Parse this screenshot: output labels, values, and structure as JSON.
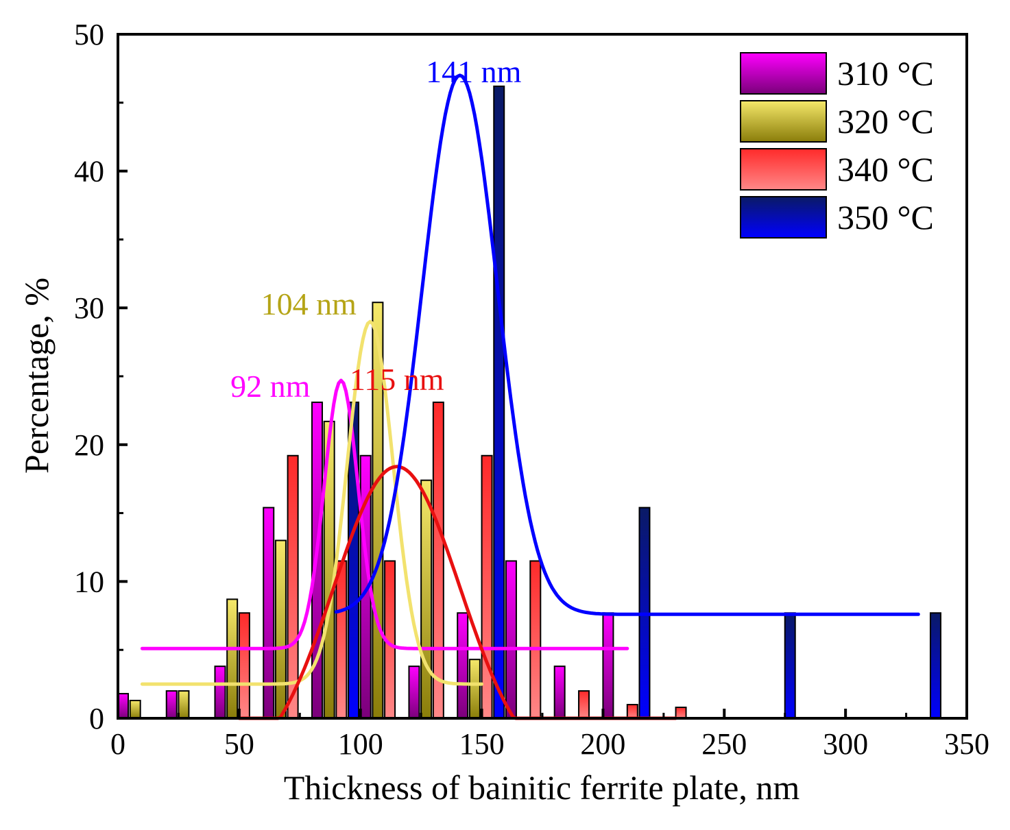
{
  "chart_data": {
    "type": "bar",
    "xlabel": "Thickness of bainitic ferrite plate, nm",
    "ylabel": "Percentage, %",
    "xlim": [
      0,
      350
    ],
    "ylim": [
      0,
      50
    ],
    "xticks": [
      "0",
      "50",
      "100",
      "150",
      "200",
      "250",
      "300",
      "350"
    ],
    "yticks": [
      "0",
      "10",
      "20",
      "30",
      "40",
      "50"
    ],
    "legend_position": "top-right",
    "series": [
      {
        "name": "310 °C",
        "color_top": "#ff00ff",
        "color_bottom": "#7a007a",
        "line_color": "#ff00ff",
        "peak_label": "92 nm",
        "peak_label_x": 92,
        "peak_label_y": 23.5,
        "fit": {
          "y0": 5.1,
          "A": 19.6,
          "xc": 92,
          "w": 14,
          "from": 10,
          "to": 210
        },
        "bars": [
          {
            "x": 0,
            "y": 1.8
          },
          {
            "x": 20,
            "y": 2.0
          },
          {
            "x": 40,
            "y": 3.8
          },
          {
            "x": 60,
            "y": 15.4
          },
          {
            "x": 80,
            "y": 23.1
          },
          {
            "x": 100,
            "y": 19.2
          },
          {
            "x": 120,
            "y": 3.8
          },
          {
            "x": 140,
            "y": 7.7
          },
          {
            "x": 160,
            "y": 11.5
          },
          {
            "x": 180,
            "y": 3.8
          },
          {
            "x": 200,
            "y": 7.7
          }
        ]
      },
      {
        "name": "320 °C",
        "color_top": "#f5e86a",
        "color_bottom": "#8a7d0a",
        "line_color": "#f2e26e",
        "peak_label": "104 nm",
        "peak_label_x": 104,
        "peak_label_y": 29.5,
        "fit": {
          "y0": 2.5,
          "A": 26.5,
          "xc": 104,
          "w": 19,
          "from": 10,
          "to": 150
        },
        "bars": [
          {
            "x": 5,
            "y": 1.3
          },
          {
            "x": 25,
            "y": 2.0
          },
          {
            "x": 45,
            "y": 8.7
          },
          {
            "x": 65,
            "y": 13.0
          },
          {
            "x": 85,
            "y": 21.7
          },
          {
            "x": 105,
            "y": 30.4
          },
          {
            "x": 125,
            "y": 17.4
          },
          {
            "x": 145,
            "y": 4.3
          }
        ]
      },
      {
        "name": "340 °C",
        "color_top": "#ff2a2a",
        "color_bottom": "#ff8888",
        "line_color": "#e81010",
        "peak_label": "115 nm",
        "peak_label_x": 115,
        "peak_label_y": 24.0,
        "fit": {
          "y0": -4.0,
          "A": 22.4,
          "xc": 115,
          "w": 52,
          "from": 50,
          "to": 230
        },
        "bars": [
          {
            "x": 50,
            "y": 7.7
          },
          {
            "x": 70,
            "y": 19.2
          },
          {
            "x": 90,
            "y": 11.5
          },
          {
            "x": 110,
            "y": 11.5
          },
          {
            "x": 130,
            "y": 23.1
          },
          {
            "x": 150,
            "y": 19.2
          },
          {
            "x": 170,
            "y": 11.5
          },
          {
            "x": 190,
            "y": 2.0
          },
          {
            "x": 210,
            "y": 1.0
          },
          {
            "x": 230,
            "y": 0.8
          }
        ]
      },
      {
        "name": "350 °C",
        "color_top": "#0a1a66",
        "color_bottom": "#0000ff",
        "line_color": "#0000ff",
        "peak_label": "141 nm",
        "peak_label_x": 141,
        "peak_label_y": 46.5,
        "fit": {
          "y0": 7.6,
          "A": 39.4,
          "xc": 141,
          "w": 31,
          "from": 90,
          "to": 330
        },
        "bars": [
          {
            "x": 95,
            "y": 23.1
          },
          {
            "x": 155,
            "y": 46.2
          },
          {
            "x": 215,
            "y": 15.4
          },
          {
            "x": 275,
            "y": 7.7
          },
          {
            "x": 335,
            "y": 7.7
          }
        ]
      }
    ]
  }
}
